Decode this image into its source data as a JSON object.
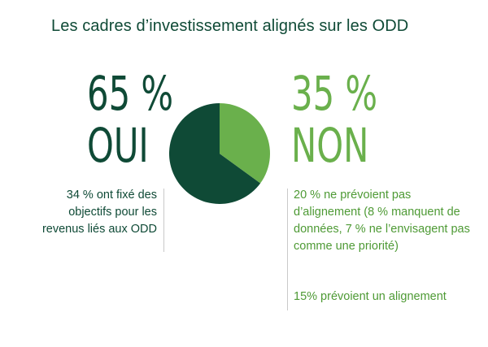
{
  "title": "Les cadres d’investissement alignés sur les ODD",
  "yes": {
    "percent": "65 %",
    "label": "OUI",
    "note": "34 % ont fixé des objectifs pour les revenus liés aux ODD"
  },
  "no": {
    "percent": "35 %",
    "label": "NON",
    "note1": "20 % ne prévoient pas d’alignement (8 % manquent de données, 7 % ne l’envisagent pas comme une priorité)",
    "note2": "15% prévoient un alignement"
  },
  "chart_data": {
    "type": "pie",
    "categories": [
      "OUI",
      "NON"
    ],
    "values": [
      65,
      35
    ],
    "colors": [
      "#0f4a36",
      "#6ab04c"
    ]
  }
}
